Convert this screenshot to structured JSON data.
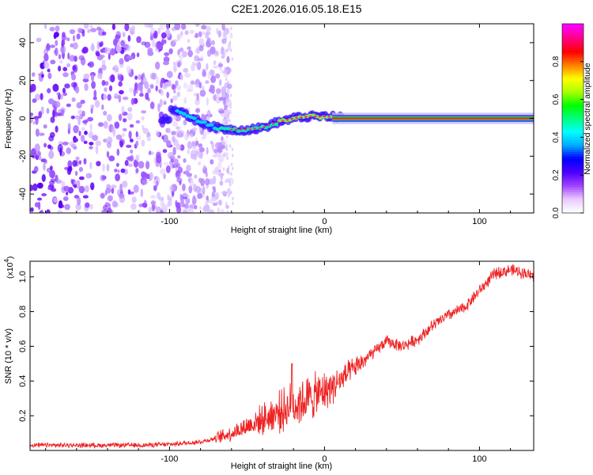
{
  "title": "C2E1.2026.016.05.18.E15",
  "chart_data": [
    {
      "type": "heatmap",
      "xlabel": "Height of straight line (km)",
      "ylabel": "Frequency (Hz)",
      "xlim": [
        -190,
        135
      ],
      "ylim": [
        -50,
        50
      ],
      "xticks": [
        -100,
        0,
        100
      ],
      "yticks": [
        -40,
        -20,
        0,
        20,
        40
      ],
      "colorbar": {
        "label": "Normalized spectral amplitude",
        "range": [
          0,
          1
        ],
        "ticks": [
          "0.0",
          "0.2",
          "0.4",
          "0.6",
          "0.8"
        ],
        "colormap": [
          "#ffffff",
          "#e8c8ff",
          "#a040ff",
          "#4a00ff",
          "#0000ff",
          "#00aaff",
          "#00ffff",
          "#00ff80",
          "#00ff00",
          "#aaff00",
          "#ffff00",
          "#ff8000",
          "#ff0000",
          "#ff0080",
          "#ff00ff"
        ]
      },
      "signal_track": [
        {
          "x": -100,
          "f": 6
        },
        {
          "x": -90,
          "f": 2
        },
        {
          "x": -80,
          "f": -2
        },
        {
          "x": -70,
          "f": -5
        },
        {
          "x": -60,
          "f": -6
        },
        {
          "x": -50,
          "f": -6
        },
        {
          "x": -40,
          "f": -5
        },
        {
          "x": -30,
          "f": -2
        },
        {
          "x": -20,
          "f": 0
        },
        {
          "x": -10,
          "f": 1
        },
        {
          "x": 0,
          "f": 1
        },
        {
          "x": 10,
          "f": 0.5
        },
        {
          "x": 135,
          "f": 0
        }
      ],
      "noise_region_km": [
        -190,
        -60
      ]
    },
    {
      "type": "line",
      "xlabel": "Height of straight line (km)",
      "ylabel": "SNR (10 * v/v)",
      "scale_label": "(x10",
      "scale_exp": "4",
      "scale_close": ")",
      "xlim": [
        -190,
        135
      ],
      "ylim": [
        0,
        1.09
      ],
      "xticks": [
        -100,
        0,
        100
      ],
      "yticks": [
        "0.2",
        "0.4",
        "0.6",
        "0.8",
        "1.0"
      ],
      "color": "#ee2222",
      "series": [
        {
          "name": "SNR",
          "x": [
            -190,
            -150,
            -120,
            -100,
            -80,
            -70,
            -60,
            -50,
            -40,
            -30,
            -20,
            -10,
            0,
            10,
            20,
            30,
            40,
            50,
            60,
            70,
            80,
            90,
            100,
            110,
            120,
            130,
            135
          ],
          "y": [
            0.03,
            0.03,
            0.03,
            0.035,
            0.05,
            0.07,
            0.1,
            0.14,
            0.18,
            0.22,
            0.26,
            0.3,
            0.34,
            0.4,
            0.48,
            0.55,
            0.63,
            0.6,
            0.64,
            0.72,
            0.78,
            0.82,
            0.92,
            1.02,
            1.04,
            1.02,
            1.0
          ]
        }
      ],
      "spike": {
        "x": -21,
        "y": 0.5
      }
    }
  ]
}
